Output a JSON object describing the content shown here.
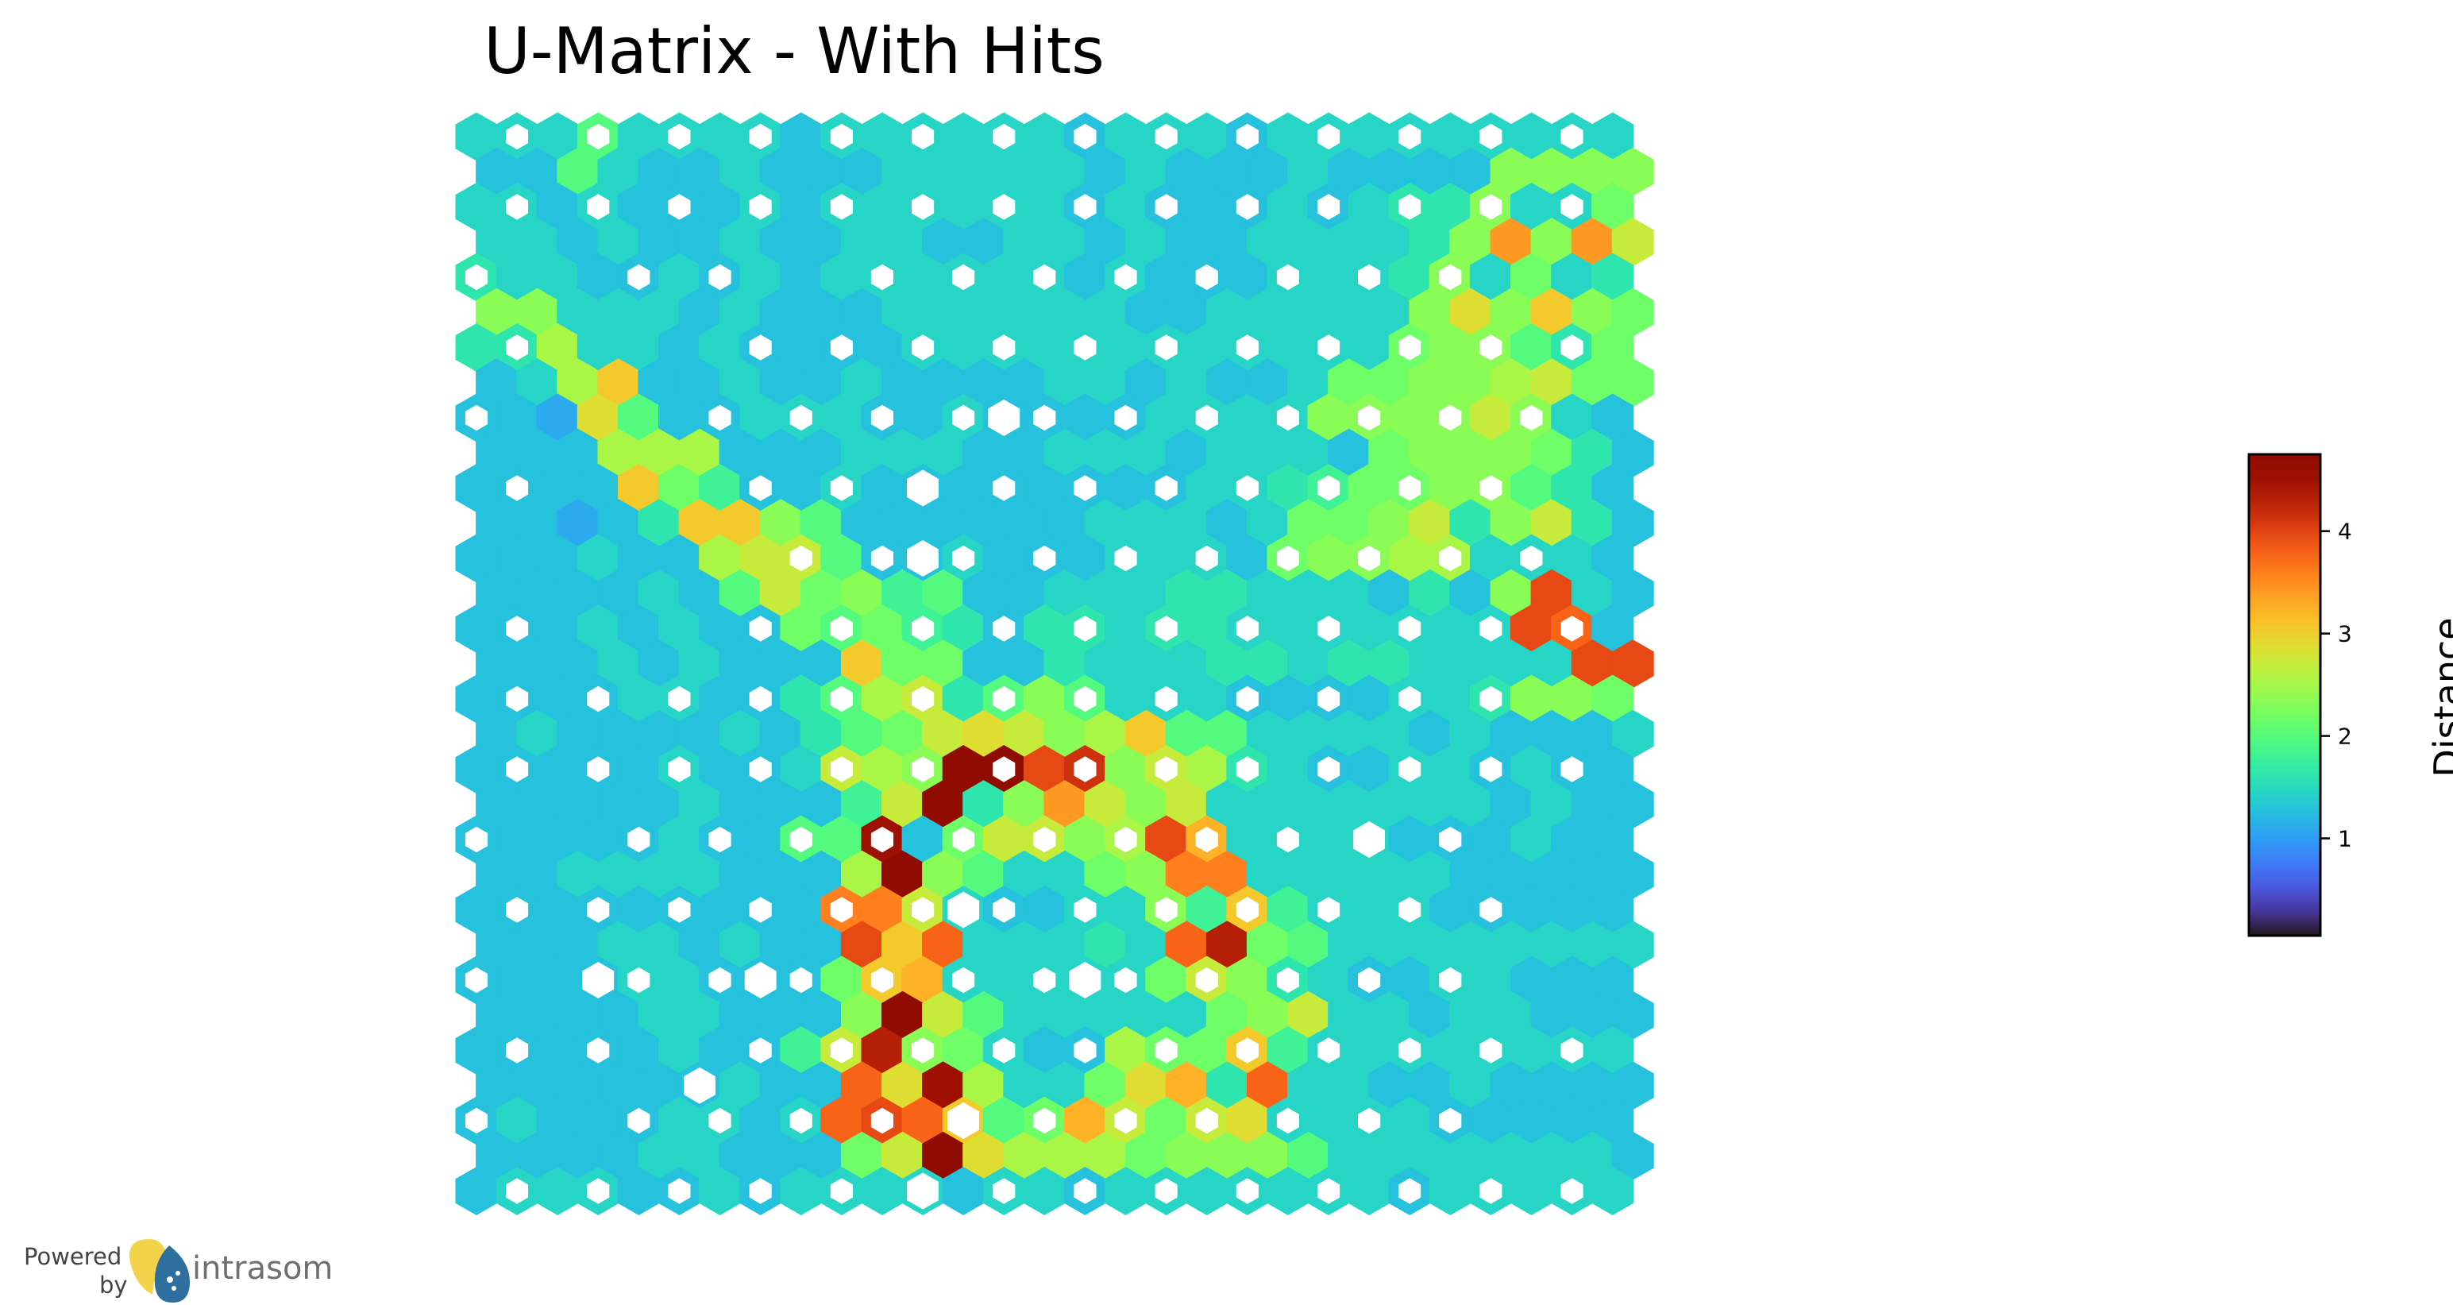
{
  "chart_data": {
    "type": "heatmap",
    "subtype": "hexagonal-u-matrix",
    "title": "U-Matrix - With Hits",
    "grid": {
      "rows": 31,
      "cols": 29
    },
    "colormap": "turbo",
    "colorbar": {
      "label": "Distance",
      "range": [
        0.05,
        4.75
      ],
      "ticks": [
        1,
        2,
        3,
        4
      ],
      "tick_labels": [
        "1",
        "2",
        "3",
        "4"
      ]
    },
    "hits_marker": "white-hexagon",
    "hits_marker_size_meaning": "number of data hits per neuron",
    "distance_matrix_rows": [
      "IIILIIIIHIIIIIIHIIIHIIIIIIIII",
      "HHLIHHIHHHIIIIIHIHHHIHHHHNNNN",
      "IIHIHHHIHIIIIIIHIHHHIHIJJNIIM",
      "IIHIHHIHHIIHHIIHIHHIIIIJNTNTP",
      "JIIHHIHIHIIIIIIHIHHHIIIJNIMIJ",
      "NNIIIHIHHHIIIIIIHHIIIIINQNRNM",
      "JJOIIHIHHHHIIIIIIIIIIIIMNNLJM",
      "HIORHHIHHIHHHHIIHIHHIMMNNOPMM",
      "HHGQLHHIIIHHIHHHHIIIINNNNPNIH",
      "HHHOOOHHHIIIHHIIIHIIIHMNNNMJH",
      "HHHHRMKHHIHHHHHHHHIIJKMMNNLJH",
      "HHGHJRRNLHHHHHHIIIHIMMNPJNPJH",
      "HHHIHHOPPLHHIHHHIIIHMNNOOIIIH",
      "HHHHIHLPMNKLHHIIIJJIIIHJHNWIH",
      "HHHIHIHHMLMKJHJJIJJIIIIIIIWVH",
      "HHHIHIHHHRMMHHJIIIJJIJJIIIIWW",
      "HHHHIIHHJLOPJLNLIIIHHHHIIJNNM",
      "HIHHHHIHJLMPQPNORLLIIIIHIHHHI",
      "HHHHHIHHIPONcbWXNPOJIHHIIHIHH",
      "HHHHHIHHHKPbJNTPNPIIIIIIIHIHH",
      "HHHHHIHHLLZHMPPNOWSIIIIHHHIHH",
      "HHIIIIHHHOfNLIIMNUUIIIIIHHHHH",
      "HHHHHHHHHUUPIHHIINKRKIIIHHHHH",
      "HHHIIHIHHWRVIIIJIVYMLIIIIIIII",
      "HHHHIIHHHMRSIIIIIMPNJIHHIIHHH",
      "HHHHIIHHHNiPLIIIIIMNPIIHIIHHH",
      "HHHHHIHHKPYNMIHHOMMRKIIIIIIII",
      "HHHHHHIHHVQZOIIMQSJVIIHHIHHHH",
      "HIHHHIIHIVWVRLMSPMPQIIIIHHHHH",
      "HHHHIIHHHMPaQOOOMNNNLIIIIIIIH",
      "HIIIHHIHIIIIHIIHIIIIIIIHIIIII"
    ],
    "distance_encoding": "A=0.0, each subsequent letter adds 0.18 distance units",
    "hit_cells": [
      [
        0,
        1,
        1
      ],
      [
        0,
        3,
        1
      ],
      [
        0,
        5,
        1
      ],
      [
        0,
        7,
        1
      ],
      [
        0,
        9,
        1
      ],
      [
        0,
        11,
        1
      ],
      [
        0,
        13,
        1
      ],
      [
        0,
        15,
        2
      ],
      [
        0,
        17,
        1
      ],
      [
        0,
        19,
        1
      ],
      [
        0,
        21,
        1
      ],
      [
        0,
        23,
        1
      ],
      [
        0,
        25,
        1
      ],
      [
        0,
        27,
        1
      ],
      [
        2,
        1,
        1
      ],
      [
        2,
        3,
        1
      ],
      [
        2,
        5,
        1
      ],
      [
        2,
        7,
        1
      ],
      [
        2,
        9,
        1
      ],
      [
        2,
        11,
        1
      ],
      [
        2,
        13,
        1
      ],
      [
        2,
        15,
        1
      ],
      [
        2,
        17,
        1
      ],
      [
        2,
        19,
        1
      ],
      [
        2,
        21,
        1
      ],
      [
        2,
        23,
        1
      ],
      [
        2,
        25,
        1
      ],
      [
        2,
        27,
        1
      ],
      [
        4,
        0,
        1
      ],
      [
        4,
        4,
        1
      ],
      [
        4,
        6,
        1
      ],
      [
        4,
        10,
        1
      ],
      [
        4,
        12,
        1
      ],
      [
        4,
        14,
        1
      ],
      [
        4,
        16,
        1
      ],
      [
        4,
        18,
        1
      ],
      [
        4,
        20,
        1
      ],
      [
        4,
        22,
        1
      ],
      [
        4,
        24,
        1
      ],
      [
        6,
        1,
        1
      ],
      [
        6,
        7,
        1
      ],
      [
        6,
        9,
        1
      ],
      [
        6,
        11,
        1
      ],
      [
        6,
        13,
        1
      ],
      [
        6,
        15,
        1
      ],
      [
        6,
        17,
        1
      ],
      [
        6,
        19,
        1
      ],
      [
        6,
        21,
        1
      ],
      [
        6,
        23,
        1
      ],
      [
        6,
        25,
        1
      ],
      [
        6,
        27,
        1
      ],
      [
        8,
        0,
        1
      ],
      [
        8,
        6,
        1
      ],
      [
        8,
        8,
        1
      ],
      [
        8,
        10,
        1
      ],
      [
        8,
        12,
        1
      ],
      [
        8,
        14,
        1
      ],
      [
        8,
        16,
        1
      ],
      [
        8,
        18,
        1
      ],
      [
        8,
        20,
        1
      ],
      [
        8,
        22,
        1
      ],
      [
        8,
        24,
        1
      ],
      [
        8,
        26,
        1
      ],
      [
        10,
        1,
        1
      ],
      [
        10,
        7,
        1
      ],
      [
        10,
        9,
        1
      ],
      [
        10,
        11,
        1
      ],
      [
        10,
        13,
        1
      ],
      [
        10,
        15,
        1
      ],
      [
        10,
        17,
        1
      ],
      [
        10,
        19,
        1
      ],
      [
        10,
        21,
        1
      ],
      [
        10,
        23,
        1
      ],
      [
        10,
        25,
        1
      ],
      [
        12,
        8,
        1
      ],
      [
        12,
        10,
        1
      ],
      [
        12,
        12,
        1
      ],
      [
        12,
        14,
        1
      ],
      [
        12,
        16,
        1
      ],
      [
        12,
        18,
        1
      ],
      [
        12,
        20,
        1
      ],
      [
        12,
        22,
        1
      ],
      [
        12,
        24,
        1
      ],
      [
        12,
        26,
        1
      ],
      [
        14,
        1,
        1
      ],
      [
        14,
        7,
        1
      ],
      [
        14,
        9,
        1
      ],
      [
        14,
        11,
        1
      ],
      [
        14,
        13,
        1
      ],
      [
        14,
        15,
        1
      ],
      [
        14,
        17,
        1
      ],
      [
        14,
        19,
        1
      ],
      [
        14,
        21,
        1
      ],
      [
        14,
        23,
        1
      ],
      [
        14,
        25,
        1
      ],
      [
        14,
        27,
        1
      ],
      [
        16,
        1,
        1
      ],
      [
        16,
        3,
        1
      ],
      [
        16,
        5,
        1
      ],
      [
        16,
        7,
        1
      ],
      [
        16,
        9,
        1
      ],
      [
        16,
        11,
        1
      ],
      [
        16,
        13,
        1
      ],
      [
        16,
        15,
        1
      ],
      [
        16,
        17,
        1
      ],
      [
        16,
        19,
        1
      ],
      [
        16,
        21,
        1
      ],
      [
        16,
        23,
        1
      ],
      [
        16,
        25,
        1
      ],
      [
        18,
        1,
        1
      ],
      [
        18,
        3,
        1
      ],
      [
        18,
        5,
        1
      ],
      [
        18,
        7,
        1
      ],
      [
        18,
        9,
        1
      ],
      [
        18,
        11,
        1
      ],
      [
        18,
        13,
        1
      ],
      [
        18,
        15,
        1
      ],
      [
        18,
        17,
        1
      ],
      [
        18,
        19,
        1
      ],
      [
        18,
        21,
        1
      ],
      [
        18,
        23,
        1
      ],
      [
        18,
        25,
        1
      ],
      [
        18,
        27,
        1
      ],
      [
        20,
        0,
        1
      ],
      [
        20,
        4,
        1
      ],
      [
        20,
        6,
        1
      ],
      [
        20,
        8,
        1
      ],
      [
        20,
        10,
        1
      ],
      [
        20,
        12,
        1
      ],
      [
        20,
        14,
        1
      ],
      [
        20,
        16,
        1
      ],
      [
        20,
        18,
        1
      ],
      [
        20,
        20,
        1
      ],
      [
        20,
        22,
        1
      ],
      [
        20,
        24,
        1
      ],
      [
        22,
        1,
        1
      ],
      [
        22,
        3,
        1
      ],
      [
        22,
        5,
        1
      ],
      [
        22,
        7,
        1
      ],
      [
        22,
        9,
        1
      ],
      [
        22,
        11,
        1
      ],
      [
        22,
        13,
        1
      ],
      [
        22,
        15,
        1
      ],
      [
        22,
        17,
        1
      ],
      [
        22,
        19,
        1
      ],
      [
        22,
        21,
        1
      ],
      [
        22,
        23,
        1
      ],
      [
        22,
        25,
        1
      ],
      [
        24,
        0,
        1
      ],
      [
        24,
        4,
        1
      ],
      [
        24,
        6,
        1
      ],
      [
        24,
        8,
        1
      ],
      [
        24,
        10,
        1
      ],
      [
        24,
        12,
        1
      ],
      [
        24,
        14,
        1
      ],
      [
        24,
        16,
        1
      ],
      [
        24,
        18,
        1
      ],
      [
        24,
        20,
        1
      ],
      [
        24,
        22,
        1
      ],
      [
        24,
        24,
        1
      ],
      [
        26,
        1,
        1
      ],
      [
        26,
        3,
        1
      ],
      [
        26,
        7,
        1
      ],
      [
        26,
        9,
        1
      ],
      [
        26,
        11,
        1
      ],
      [
        26,
        13,
        1
      ],
      [
        26,
        15,
        1
      ],
      [
        26,
        17,
        1
      ],
      [
        26,
        19,
        1
      ],
      [
        26,
        21,
        1
      ],
      [
        26,
        23,
        1
      ],
      [
        26,
        25,
        1
      ],
      [
        26,
        27,
        1
      ],
      [
        28,
        0,
        1
      ],
      [
        28,
        4,
        1
      ],
      [
        28,
        6,
        1
      ],
      [
        28,
        8,
        1
      ],
      [
        28,
        10,
        1
      ],
      [
        28,
        12,
        1
      ],
      [
        28,
        14,
        1
      ],
      [
        28,
        16,
        1
      ],
      [
        28,
        18,
        1
      ],
      [
        28,
        20,
        1
      ],
      [
        28,
        22,
        1
      ],
      [
        28,
        24,
        1
      ],
      [
        30,
        1,
        1
      ],
      [
        30,
        3,
        1
      ],
      [
        30,
        5,
        1
      ],
      [
        30,
        7,
        1
      ],
      [
        30,
        9,
        1
      ],
      [
        30,
        11,
        1
      ],
      [
        30,
        13,
        1
      ],
      [
        30,
        15,
        1
      ],
      [
        30,
        17,
        1
      ],
      [
        30,
        19,
        1
      ],
      [
        30,
        21,
        1
      ],
      [
        30,
        23,
        1
      ],
      [
        30,
        25,
        1
      ],
      [
        30,
        27,
        1
      ]
    ],
    "large_hit_cells": [
      [
        8,
        13,
        2
      ],
      [
        10,
        11,
        2
      ],
      [
        12,
        11,
        2
      ],
      [
        20,
        22,
        2
      ],
      [
        22,
        12,
        2
      ],
      [
        24,
        3,
        2
      ],
      [
        24,
        7,
        2
      ],
      [
        24,
        15,
        2
      ],
      [
        27,
        5,
        2
      ],
      [
        28,
        12,
        2
      ],
      [
        30,
        11,
        2
      ]
    ]
  },
  "branding": {
    "powered_text_line1": "Powered",
    "powered_text_line2": "by",
    "brand_name": "intrasom",
    "logo_colors": [
      "#f3d34a",
      "#2e6f9e"
    ]
  }
}
